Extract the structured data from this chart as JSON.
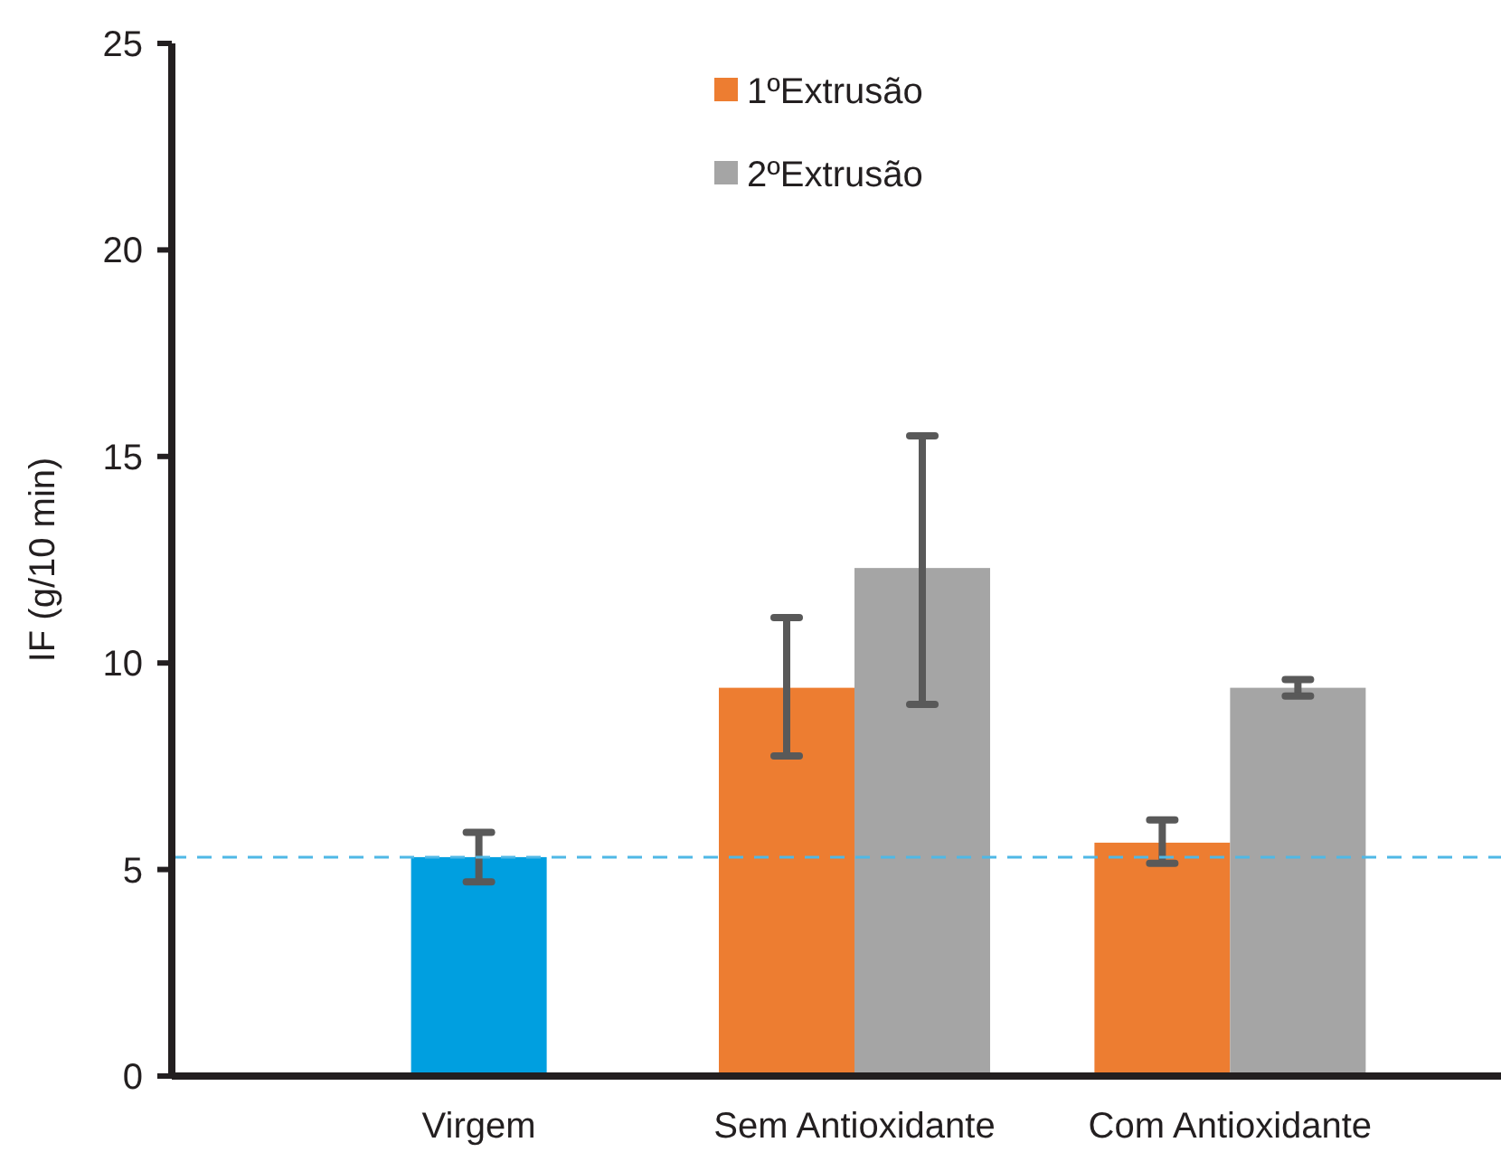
{
  "chart_data": {
    "type": "bar",
    "ylabel": "IF (g/10 min)",
    "categories": [
      "Virgem",
      "Sem Antioxidante",
      "Com Antioxidante"
    ],
    "series": [
      {
        "color": "#009fe0",
        "values": [
          5.3,
          null,
          null
        ],
        "errors": [
          [
            4.7,
            5.9
          ],
          null,
          null
        ]
      },
      {
        "name": "1ºExtrusão",
        "color": "#ed7d31",
        "values": [
          null,
          9.4,
          5.65
        ],
        "errors": [
          null,
          [
            7.75,
            11.1
          ],
          [
            5.15,
            6.2
          ]
        ]
      },
      {
        "name": "2ºExtrusão",
        "color": "#a5a5a5",
        "values": [
          null,
          12.3,
          9.4
        ],
        "errors": [
          null,
          [
            9.0,
            15.5
          ],
          [
            9.2,
            9.6
          ]
        ]
      }
    ],
    "ylim": [
      0,
      25
    ],
    "yticks": [
      0,
      5,
      10,
      15,
      20,
      25
    ],
    "ref_lines": [
      {
        "axis": "y",
        "value": 5.3,
        "color": "#4fb8e6",
        "line_style": "dashed"
      }
    ],
    "legend": "top",
    "grid": false
  }
}
